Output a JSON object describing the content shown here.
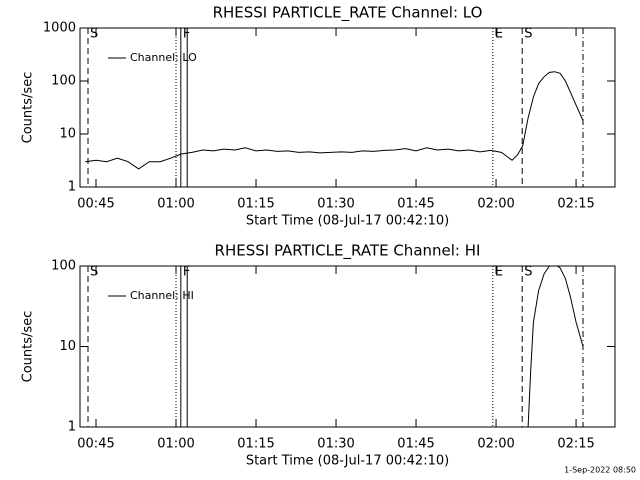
{
  "chart_data": [
    {
      "type": "line",
      "title": "RHESSI PARTICLE_RATE Channel: LO",
      "ylabel": "Counts/sec",
      "xlabel": "Start Time (08-Jul-17 00:42:10)",
      "log_y": true,
      "ylim": [
        1,
        1000
      ],
      "yticks": [
        1,
        10,
        100,
        1000
      ],
      "xlim": [
        42,
        142.3
      ],
      "xticks": [
        {
          "value": 45,
          "label": "00:45"
        },
        {
          "value": 60,
          "label": "01:00"
        },
        {
          "value": 75,
          "label": "01:15"
        },
        {
          "value": 90,
          "label": "01:30"
        },
        {
          "value": 105,
          "label": "01:45"
        },
        {
          "value": 120,
          "label": "02:00"
        },
        {
          "value": 135,
          "label": "02:15"
        }
      ],
      "x": [
        43,
        45,
        47,
        49,
        51,
        53,
        55,
        57,
        59,
        61,
        63,
        65,
        67,
        69,
        71,
        73,
        75,
        77,
        79,
        81,
        83,
        85,
        87,
        89,
        91,
        93,
        95,
        97,
        99,
        101,
        103,
        105,
        107,
        109,
        111,
        113,
        115,
        117,
        119,
        121,
        123,
        124,
        125,
        126,
        127,
        128,
        129,
        130,
        131,
        132,
        133,
        134,
        135,
        136.3
      ],
      "series": [
        {
          "name": "Channel: LO",
          "color": "#000000",
          "values": [
            3,
            3.2,
            3,
            3.5,
            3,
            2.2,
            3,
            3,
            3.5,
            4.2,
            4.5,
            5,
            4.8,
            5.2,
            5,
            5.5,
            4.8,
            5,
            4.7,
            4.8,
            4.5,
            4.6,
            4.4,
            4.5,
            4.6,
            4.5,
            4.8,
            4.7,
            4.9,
            5,
            5.3,
            4.8,
            5.5,
            5,
            5.2,
            4.8,
            5,
            4.6,
            4.9,
            4.5,
            3.2,
            4,
            6,
            20,
            50,
            90,
            120,
            145,
            150,
            140,
            100,
            60,
            35,
            18
          ]
        }
      ],
      "legend": "upper left",
      "markers": [
        {
          "x": 43.5,
          "label": "S",
          "style": "dashed"
        },
        {
          "x": 60,
          "style": "dotted"
        },
        {
          "x": 60.9,
          "label": "F",
          "style": "solid"
        },
        {
          "x": 62.1,
          "style": "solid"
        },
        {
          "x": 119.4,
          "label": "E",
          "style": "dotted"
        },
        {
          "x": 124.9,
          "label": "S",
          "style": "dashed"
        },
        {
          "x": 136.3,
          "style": "dashdot"
        }
      ]
    },
    {
      "type": "line",
      "title": "RHESSI PARTICLE_RATE Channel: HI",
      "ylabel": "Counts/sec",
      "xlabel": "Start Time (08-Jul-17 00:42:10)",
      "log_y": true,
      "ylim": [
        1,
        100
      ],
      "yticks": [
        1,
        10,
        100
      ],
      "xlim": [
        42,
        142.3
      ],
      "xticks": [
        {
          "value": 45,
          "label": "00:45"
        },
        {
          "value": 60,
          "label": "01:00"
        },
        {
          "value": 75,
          "label": "01:15"
        },
        {
          "value": 90,
          "label": "01:30"
        },
        {
          "value": 105,
          "label": "01:45"
        },
        {
          "value": 120,
          "label": "02:00"
        },
        {
          "value": 135,
          "label": "02:15"
        }
      ],
      "x": [
        126,
        126.5,
        127,
        128,
        129,
        130,
        131,
        132,
        133,
        134,
        135,
        136.3
      ],
      "series": [
        {
          "name": "Channel: HI",
          "color": "#000000",
          "values": [
            1,
            5,
            20,
            50,
            80,
            100,
            105,
            95,
            70,
            40,
            20,
            10
          ]
        }
      ],
      "legend": "upper left",
      "markers": [
        {
          "x": 43.5,
          "label": "S",
          "style": "dashed"
        },
        {
          "x": 60,
          "style": "dotted"
        },
        {
          "x": 60.9,
          "label": "F",
          "style": "solid"
        },
        {
          "x": 62.1,
          "style": "solid"
        },
        {
          "x": 119.4,
          "label": "E",
          "style": "dotted"
        },
        {
          "x": 124.9,
          "label": "S",
          "style": "dashed"
        },
        {
          "x": 136.3,
          "style": "dashdot"
        }
      ]
    }
  ],
  "footer": "1-Sep-2022 08:50"
}
